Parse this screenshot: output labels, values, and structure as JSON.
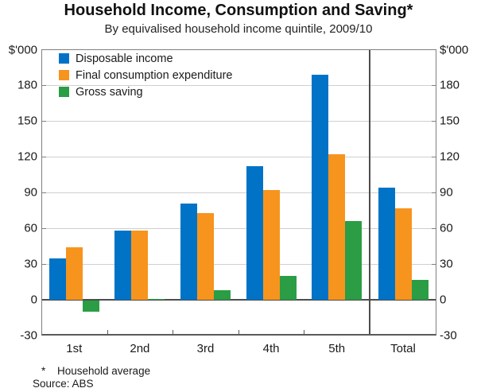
{
  "header": {
    "title": "Household Income, Consumption and Saving*",
    "subtitle": "By equivalised household income quintile, 2009/10"
  },
  "axes": {
    "unit_left": "$'000",
    "unit_right": "$'000",
    "y_ticks": [
      180,
      150,
      120,
      90,
      60,
      30,
      0,
      -30
    ]
  },
  "footnote": {
    "marker": "*",
    "text": "Household average",
    "source": "Source: ABS"
  },
  "chart_data": {
    "type": "bar",
    "title": "Household Income, Consumption and Saving",
    "subtitle": "By equivalised household income quintile, 2009/10",
    "ylabel": "$'000",
    "ylim": [
      -30,
      210
    ],
    "y_step": 30,
    "grid": true,
    "legend_position": "top-left",
    "categories": [
      "1st",
      "2nd",
      "3rd",
      "4th",
      "5th",
      "Total"
    ],
    "separator_before_category": "Total",
    "series": [
      {
        "name": "Disposable income",
        "color": "#0073C6",
        "values": [
          35,
          58,
          81,
          112,
          189,
          94
        ]
      },
      {
        "name": "Final consumption expenditure",
        "color": "#F7941D",
        "values": [
          44,
          58,
          73,
          92,
          122,
          77
        ]
      },
      {
        "name": "Gross saving",
        "color": "#2A9D45",
        "values": [
          -9,
          1,
          8,
          20,
          66,
          17
        ]
      }
    ]
  }
}
